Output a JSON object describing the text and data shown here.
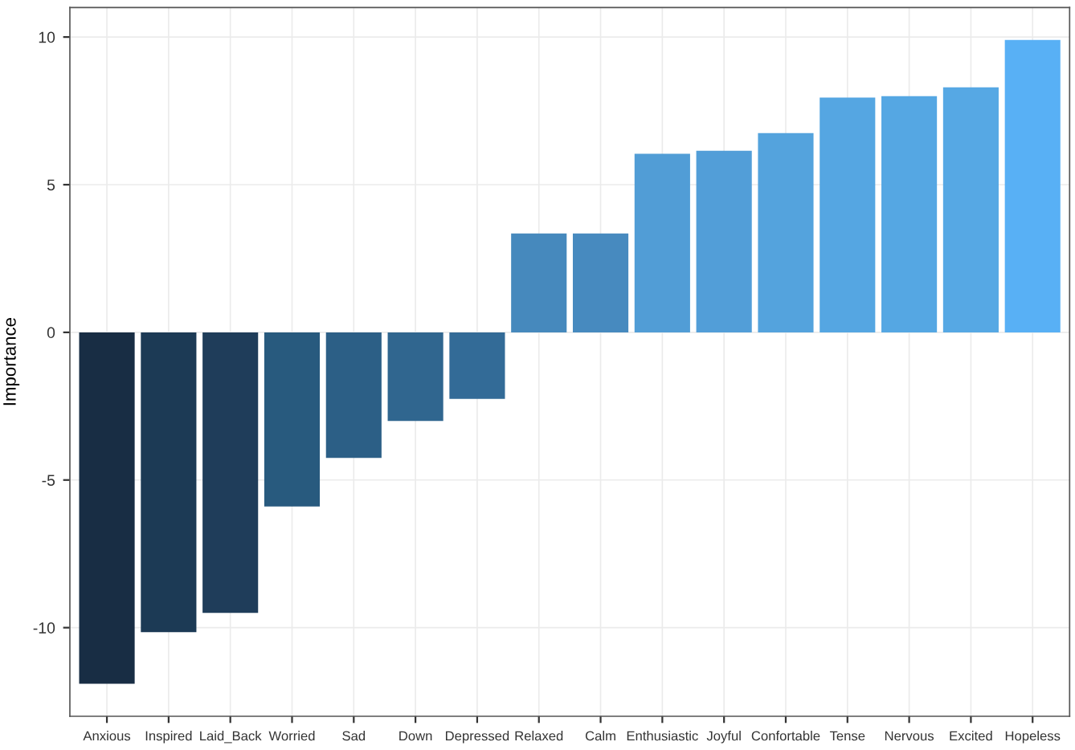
{
  "chart_data": {
    "type": "bar",
    "ylabel": "Importance",
    "categories": [
      "Anxious",
      "Inspired",
      "Laid_Back",
      "Worried",
      "Sad",
      "Down",
      "Depressed",
      "Relaxed",
      "Calm",
      "Enthusiastic",
      "Joyful",
      "Confortable",
      "Tense",
      "Nervous",
      "Excited",
      "Hopeless"
    ],
    "values": [
      -11.9,
      -10.15,
      -9.5,
      -5.9,
      -4.25,
      -3.0,
      -2.25,
      3.35,
      3.35,
      6.05,
      6.15,
      6.75,
      7.95,
      8.0,
      8.3,
      9.9
    ],
    "colors": [
      "#182d44",
      "#1c3a55",
      "#1f3d5a",
      "#285a7e",
      "#2c5f86",
      "#30668f",
      "#336b97",
      "#4689bd",
      "#478abf",
      "#519dd6",
      "#529ed8",
      "#54a3dd",
      "#55a6e2",
      "#55a7e3",
      "#56a8e4",
      "#58b0f5"
    ],
    "ylim": [
      -13,
      11
    ],
    "yticks": [
      -10,
      -5,
      0,
      5,
      10
    ],
    "grid": true
  }
}
